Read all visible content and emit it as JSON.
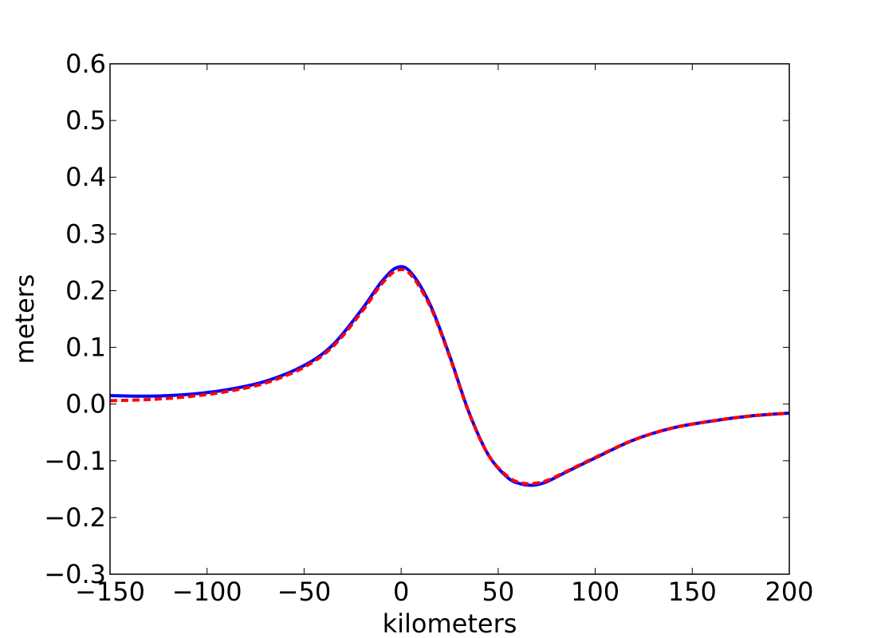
{
  "chart_data": {
    "type": "line",
    "xlabel": "kilometers",
    "ylabel": "meters",
    "xlim": [
      -150,
      200
    ],
    "ylim": [
      -0.3,
      0.6
    ],
    "xticks": [
      -150,
      -100,
      -50,
      0,
      50,
      100,
      150,
      200
    ],
    "yticks": [
      -0.3,
      -0.2,
      -0.1,
      0.0,
      0.1,
      0.2,
      0.3,
      0.4,
      0.5,
      0.6
    ],
    "xtick_labels": [
      "−150",
      "−100",
      "−50",
      "0",
      "50",
      "100",
      "150",
      "200"
    ],
    "ytick_labels": [
      "−0.3",
      "−0.2",
      "−0.1",
      "0.0",
      "0.1",
      "0.2",
      "0.3",
      "0.4",
      "0.5",
      "0.6"
    ],
    "grid": false,
    "series": [
      {
        "color": "#0000ff",
        "style": "solid",
        "x": [
          -150,
          -130,
          -110,
          -90,
          -70,
          -50,
          -35,
          -20,
          -10,
          -2,
          5,
          15,
          25,
          35,
          45,
          55,
          62,
          68,
          75,
          85,
          100,
          120,
          140,
          160,
          180,
          200
        ],
        "y": [
          0.015,
          0.014,
          0.017,
          0.025,
          0.04,
          0.068,
          0.105,
          0.168,
          0.216,
          0.241,
          0.232,
          0.175,
          0.085,
          -0.015,
          -0.09,
          -0.13,
          -0.141,
          -0.143,
          -0.137,
          -0.12,
          -0.095,
          -0.063,
          -0.042,
          -0.03,
          -0.021,
          -0.016
        ]
      },
      {
        "color": "#ff0000",
        "style": "dashed",
        "x": [
          -150,
          -130,
          -110,
          -90,
          -70,
          -50,
          -35,
          -20,
          -10,
          -2,
          5,
          15,
          25,
          35,
          45,
          55,
          62,
          68,
          75,
          85,
          100,
          120,
          140,
          160,
          180,
          200
        ],
        "y": [
          0.006,
          0.008,
          0.013,
          0.022,
          0.037,
          0.065,
          0.102,
          0.164,
          0.212,
          0.236,
          0.228,
          0.172,
          0.083,
          -0.016,
          -0.09,
          -0.128,
          -0.139,
          -0.14,
          -0.135,
          -0.119,
          -0.094,
          -0.063,
          -0.042,
          -0.03,
          -0.021,
          -0.016
        ]
      }
    ]
  }
}
